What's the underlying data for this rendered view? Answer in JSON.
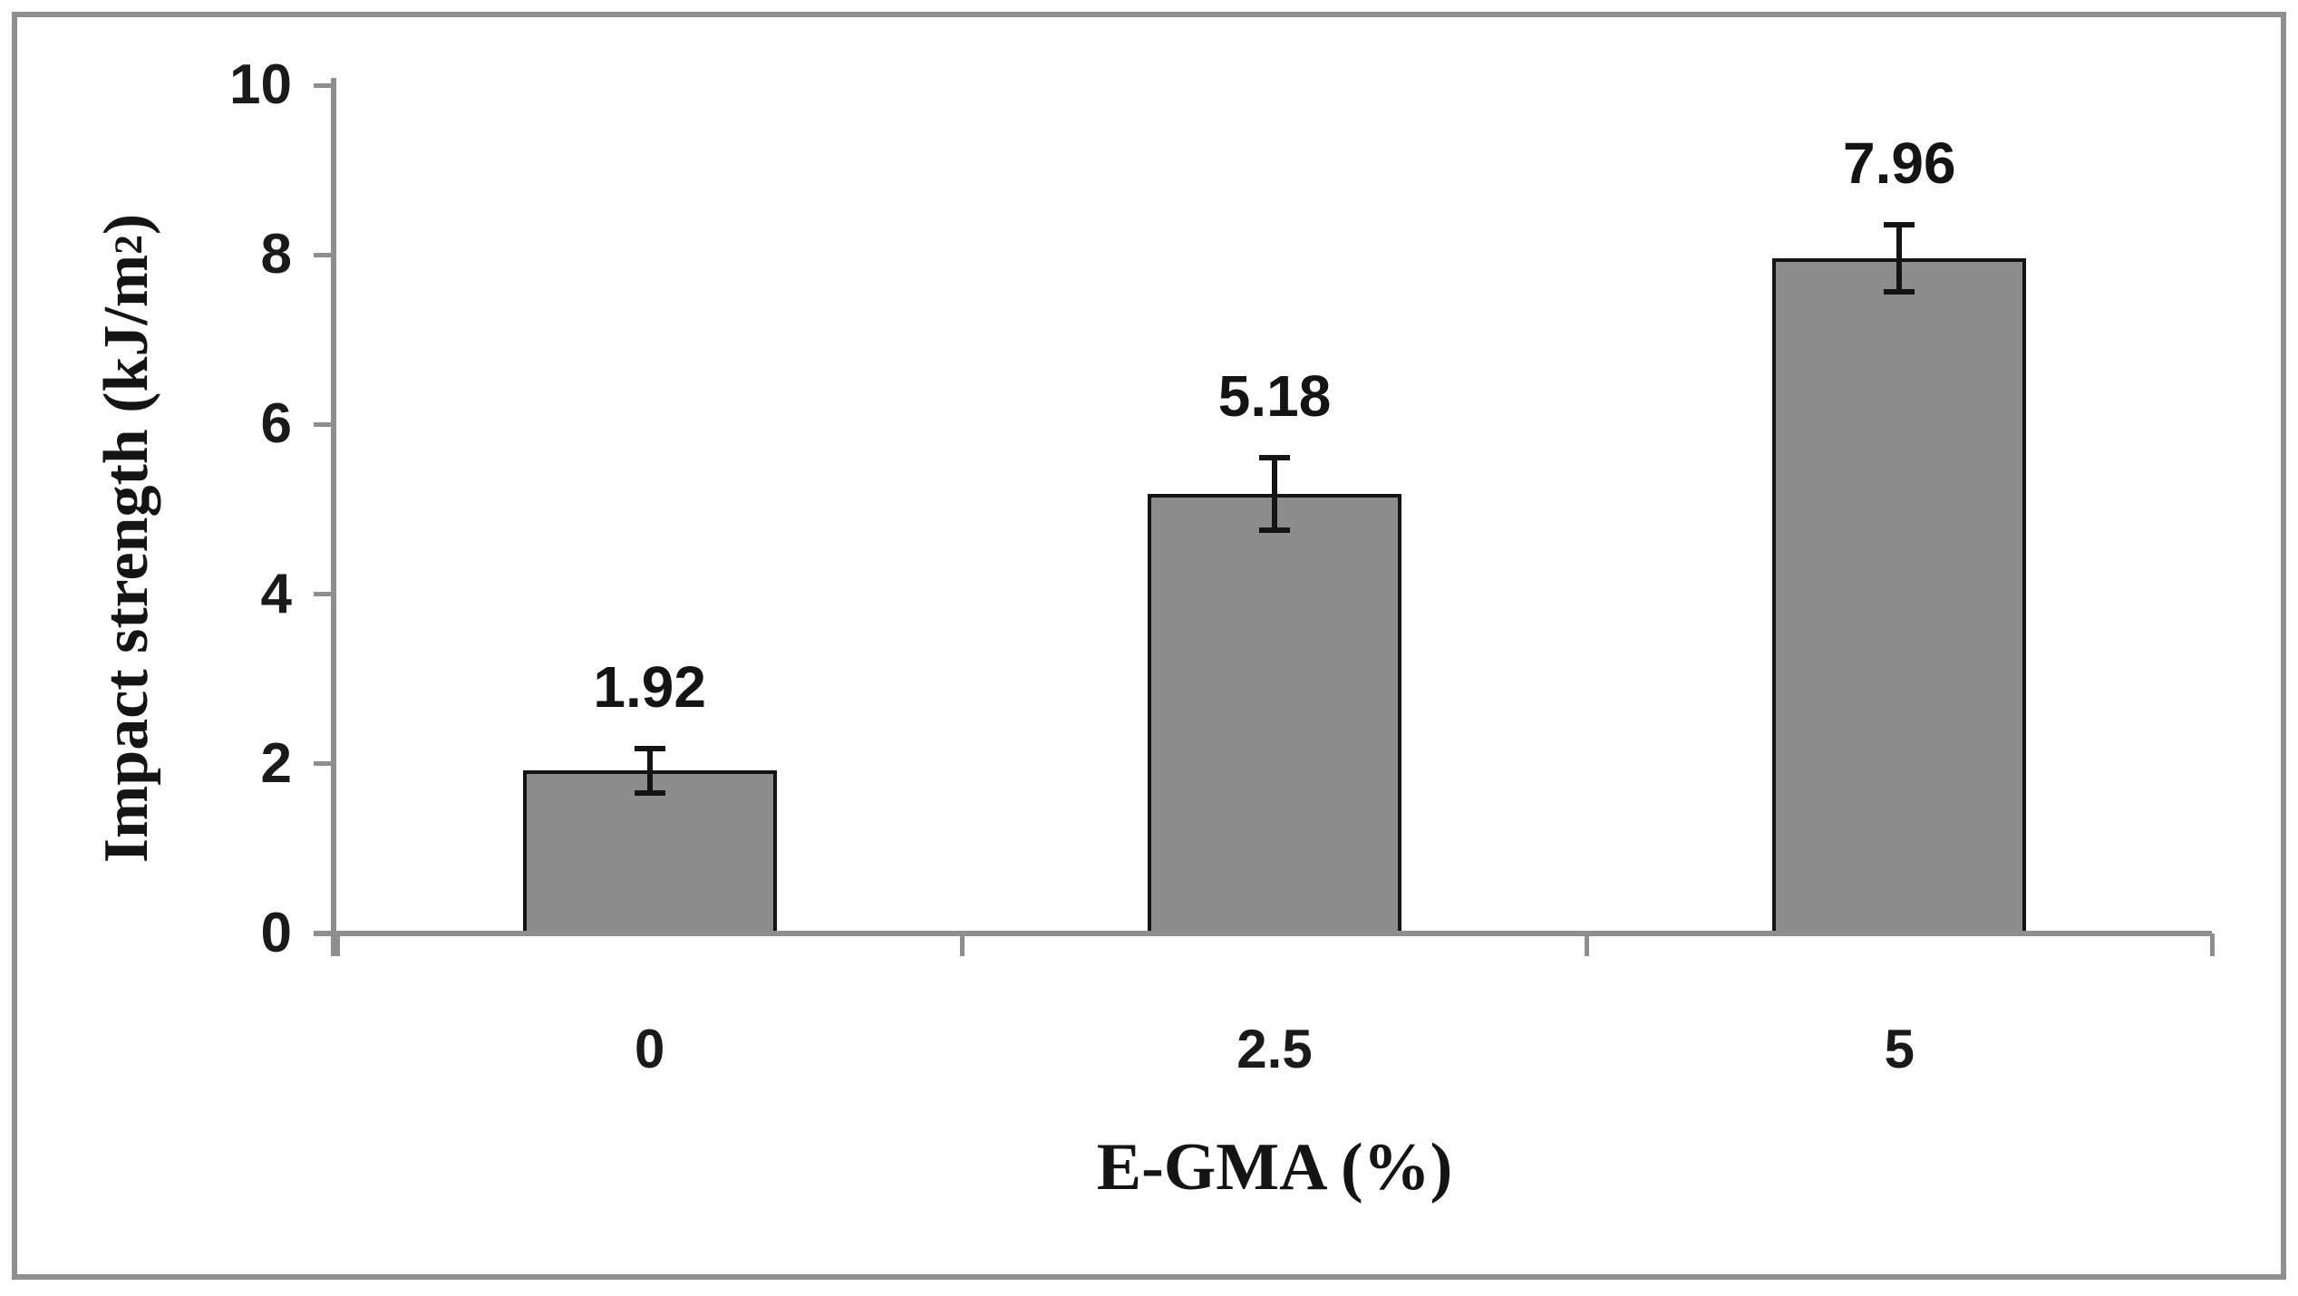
{
  "figure": {
    "background": "#fefefe",
    "frame_color": "#8f8f8f"
  },
  "chart_data": {
    "type": "bar",
    "categories": [
      "0",
      "2.5",
      "5"
    ],
    "values": [
      1.92,
      5.18,
      7.96
    ],
    "error_bars": [
      0.26,
      0.43,
      0.4
    ],
    "data_labels": [
      "1.92",
      "5.18",
      "7.96"
    ],
    "title": "",
    "xlabel": "E-GMA (%)",
    "ylabel": "Impact strength (kJ/m2)",
    "ylabel_parts": {
      "prefix": "Impact strength (kJ/m",
      "sup": "2",
      "suffix": ")"
    },
    "ylim": [
      0,
      10
    ],
    "yticks": [
      0,
      2,
      4,
      6,
      8,
      10
    ],
    "grid": false,
    "legend": false,
    "bar_fill": "#8c8c8c",
    "bar_border": "#141414",
    "error_color": "#141414",
    "axis_color": "#8e8e8e",
    "text_color": "#1a1a1a"
  }
}
